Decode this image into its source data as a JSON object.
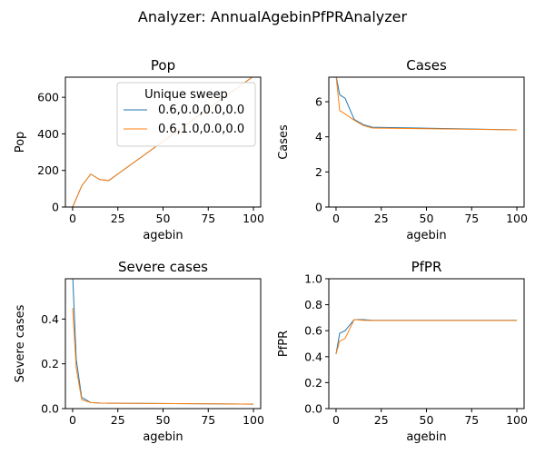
{
  "figure_title": "Analyzer: AnnualAgebinPfPRAnalyzer",
  "legend": {
    "title": "Unique sweep",
    "placement": "upper-right of first panel",
    "entries": [
      {
        "label": "0.6,0.0,0.0,0.0",
        "color": "#1f77b4"
      },
      {
        "label": "0.6,1.0,0.0,0.0",
        "color": "#ff7f0e"
      }
    ]
  },
  "chart_data": [
    {
      "type": "line",
      "title": "Pop",
      "xlabel": "agebin",
      "ylabel": "Pop",
      "xlim": [
        -4,
        104
      ],
      "ylim": [
        0,
        710
      ],
      "xticks": [
        0,
        25,
        50,
        75,
        100
      ],
      "yticks": [
        0,
        200,
        400,
        600
      ],
      "series": [
        {
          "name": "0.6,0.0,0.0,0.0",
          "color": "#1f77b4",
          "x": [
            0,
            5,
            10,
            15,
            20,
            100
          ],
          "y": [
            0,
            115,
            180,
            150,
            145,
            715
          ]
        },
        {
          "name": "0.6,1.0,0.0,0.0",
          "color": "#ff7f0e",
          "x": [
            0,
            5,
            10,
            15,
            20,
            100
          ],
          "y": [
            0,
            115,
            180,
            150,
            145,
            715
          ]
        }
      ]
    },
    {
      "type": "line",
      "title": "Cases",
      "xlabel": "agebin",
      "ylabel": "Cases",
      "xlim": [
        -4,
        104
      ],
      "ylim": [
        0,
        7.4
      ],
      "xticks": [
        0,
        25,
        50,
        75,
        100
      ],
      "yticks": [
        0,
        2,
        4,
        6
      ],
      "series": [
        {
          "name": "0.6,0.0,0.0,0.0",
          "color": "#1f77b4",
          "x": [
            0,
            2,
            5,
            10,
            15,
            20,
            100
          ],
          "y": [
            7.5,
            6.4,
            6.2,
            5.0,
            4.7,
            4.55,
            4.4
          ]
        },
        {
          "name": "0.6,1.0,0.0,0.0",
          "color": "#ff7f0e",
          "x": [
            0,
            2,
            5,
            10,
            15,
            20,
            100
          ],
          "y": [
            7.5,
            5.5,
            5.3,
            4.95,
            4.65,
            4.5,
            4.4
          ]
        }
      ]
    },
    {
      "type": "line",
      "title": "Severe cases",
      "xlabel": "agebin",
      "ylabel": "Severe cases",
      "xlim": [
        -4,
        104
      ],
      "ylim": [
        0,
        0.58
      ],
      "xticks": [
        0,
        25,
        50,
        75,
        100
      ],
      "yticks": [
        0.0,
        0.2,
        0.4
      ],
      "ytick_labels": [
        "0.0",
        "0.2",
        "0.4"
      ],
      "series": [
        {
          "name": "0.6,0.0,0.0,0.0",
          "color": "#1f77b4",
          "x": [
            0,
            2,
            5,
            10,
            15,
            20,
            100
          ],
          "y": [
            0.6,
            0.22,
            0.05,
            0.027,
            0.025,
            0.024,
            0.02
          ]
        },
        {
          "name": "0.6,1.0,0.0,0.0",
          "color": "#ff7f0e",
          "x": [
            0,
            2,
            5,
            10,
            15,
            20,
            100
          ],
          "y": [
            0.45,
            0.18,
            0.04,
            0.027,
            0.025,
            0.024,
            0.02
          ]
        }
      ]
    },
    {
      "type": "line",
      "title": "PfPR",
      "xlabel": "agebin",
      "ylabel": "PfPR",
      "xlim": [
        -4,
        104
      ],
      "ylim": [
        0,
        1.0
      ],
      "xticks": [
        0,
        25,
        50,
        75,
        100
      ],
      "yticks": [
        0.0,
        0.2,
        0.4,
        0.6,
        0.8,
        1.0
      ],
      "ytick_labels": [
        "0.0",
        "0.2",
        "0.4",
        "0.6",
        "0.8",
        "1.0"
      ],
      "series": [
        {
          "name": "0.6,0.0,0.0,0.0",
          "color": "#1f77b4",
          "x": [
            0,
            2,
            5,
            10,
            15,
            20,
            100
          ],
          "y": [
            0.42,
            0.58,
            0.6,
            0.685,
            0.685,
            0.68,
            0.68
          ]
        },
        {
          "name": "0.6,1.0,0.0,0.0",
          "color": "#ff7f0e",
          "x": [
            0,
            2,
            5,
            10,
            15,
            20,
            100
          ],
          "y": [
            0.42,
            0.52,
            0.54,
            0.685,
            0.68,
            0.678,
            0.678
          ]
        }
      ]
    }
  ]
}
